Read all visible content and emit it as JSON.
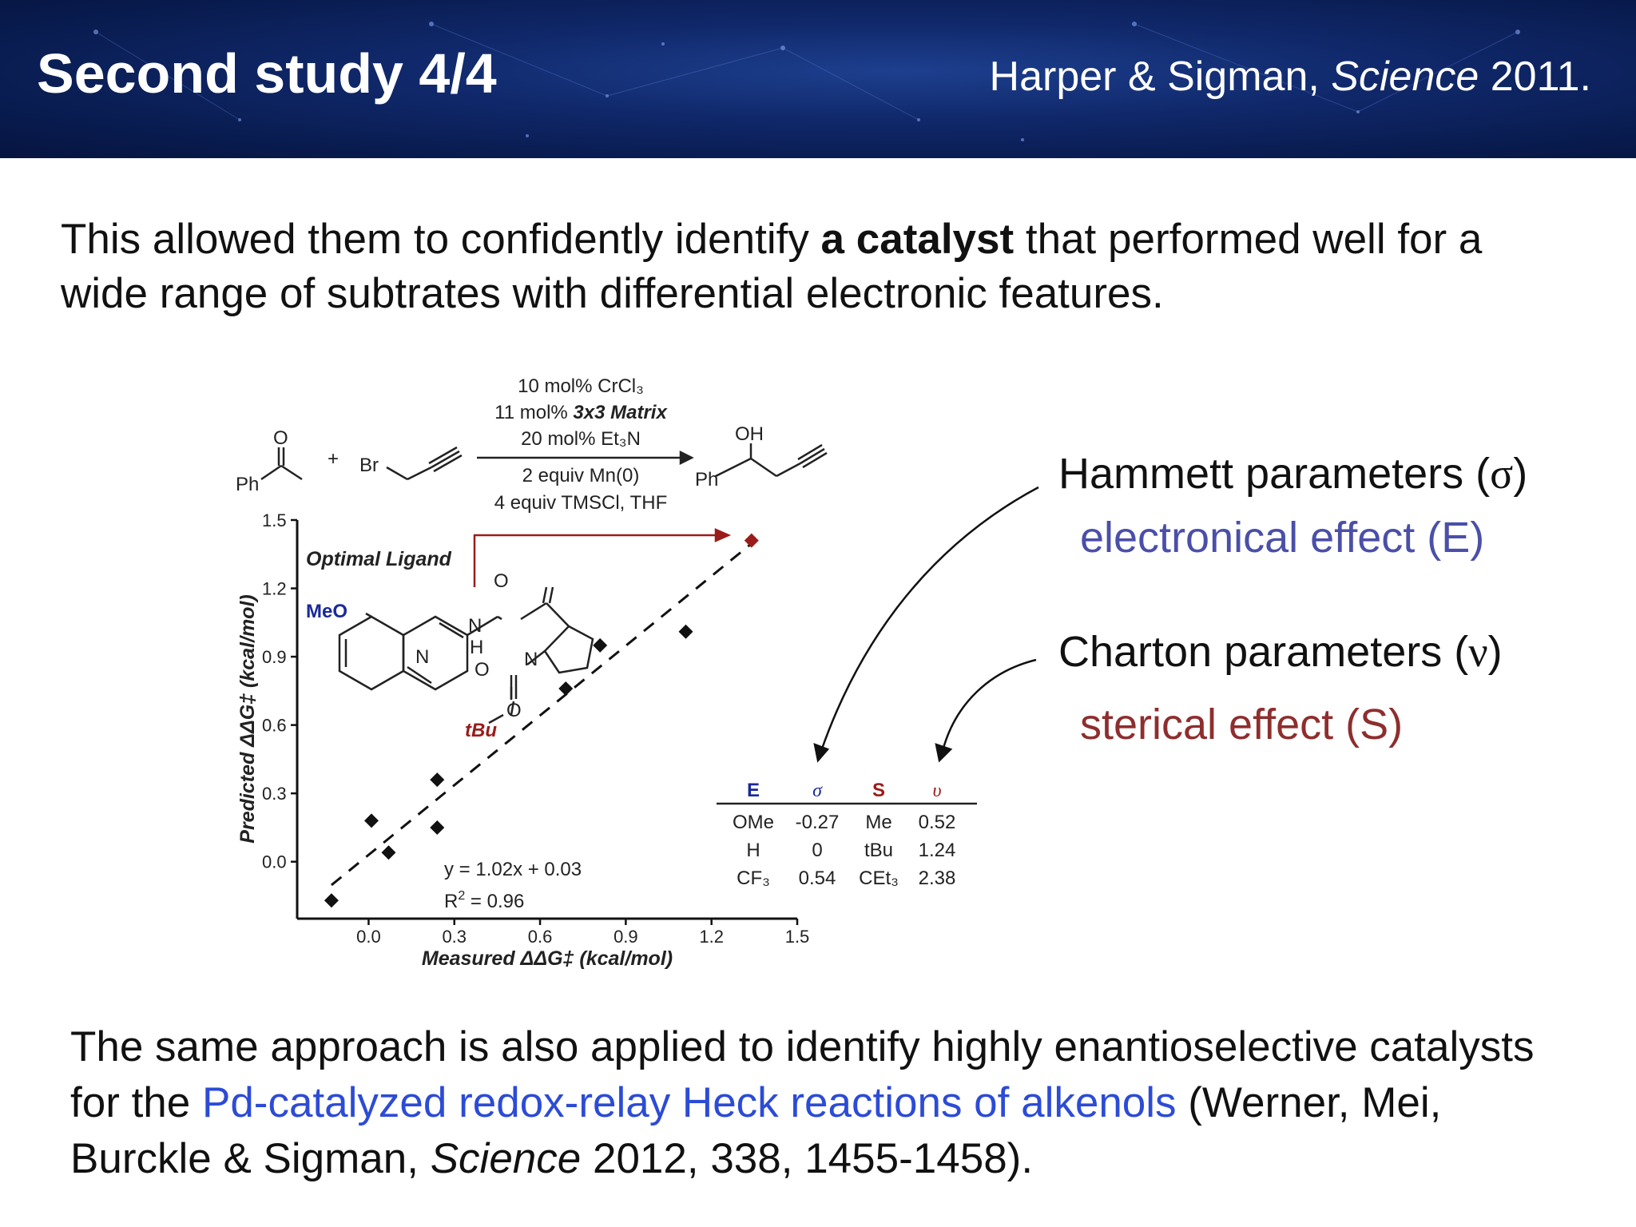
{
  "header": {
    "title": "Second study 4/4",
    "citation_authors": "Harper & Sigman, ",
    "citation_journal": "Science",
    "citation_year": " 2011."
  },
  "intro": {
    "part1": "This allowed them to confidently identify ",
    "bold": "a catalyst",
    "part2": " that performed well for a wide range of subtrates with differential electronic features."
  },
  "reaction": {
    "reactant_ph": "Ph",
    "reactant_o": "O",
    "plus": "+",
    "bromide": "Br",
    "conditions_top": [
      "10 mol% CrCl₃",
      "11 mol% ",
      "20 mol% Et₃N"
    ],
    "matrix_label": "3x3 Matrix",
    "conditions_bottom": [
      "2 equiv Mn(0)",
      "4 equiv TMSCl, THF"
    ],
    "product_oh": "OH",
    "product_ph": "Ph"
  },
  "ligand": {
    "label": "Optimal Ligand",
    "meo": "MeO",
    "n_quin": "N",
    "nh": "N",
    "h": "H",
    "o_amide": "O",
    "n_pro": "N",
    "o_carb": "O",
    "o_ester": "O",
    "tbu": "tBu"
  },
  "chart_data": {
    "type": "scatter",
    "title": "",
    "xlabel": "Measured ΔΔG‡ (kcal/mol)",
    "ylabel": "Predicted ΔΔG‡ (kcal/mol)",
    "xlim": [
      -0.25,
      1.5
    ],
    "ylim": [
      -0.25,
      1.5
    ],
    "x_ticks": [
      "0.0",
      "0.3",
      "0.6",
      "0.9",
      "1.2",
      "1.5"
    ],
    "y_ticks": [
      "0.0",
      "0.3",
      "0.6",
      "0.9",
      "1.2",
      "1.5"
    ],
    "series": [
      {
        "points": [
          {
            "x": -0.13,
            "y": -0.17
          },
          {
            "x": 0.01,
            "y": 0.18
          },
          {
            "x": 0.07,
            "y": 0.04
          },
          {
            "x": 0.24,
            "y": 0.36
          },
          {
            "x": 0.24,
            "y": 0.15
          },
          {
            "x": 0.69,
            "y": 0.76
          },
          {
            "x": 0.81,
            "y": 0.95
          },
          {
            "x": 1.11,
            "y": 1.01
          },
          {
            "x": 1.34,
            "y": 1.41,
            "highlight": true
          }
        ]
      }
    ],
    "fit": {
      "slope": 1.02,
      "intercept": 0.03,
      "x_range": [
        -0.13,
        1.35
      ]
    },
    "equation": "y = 1.02x + 0.03",
    "r2_label": "R",
    "r2_sup": "2",
    "r2_value": " = 0.96",
    "marker_color": "#111111",
    "highlight_color": "#9b1b1b"
  },
  "param_table": {
    "headers": [
      "E",
      "σ",
      "S",
      "υ"
    ],
    "header_colors": [
      "#1a2a9a",
      "#1a2a9a",
      "#9b1b1b",
      "#9b1b1b"
    ],
    "rows": [
      [
        "OMe",
        "-0.27",
        "Me",
        "0.52"
      ],
      [
        "H",
        "0",
        "tBu",
        "1.24"
      ],
      [
        "CF₃",
        "0.54",
        "CEt₃",
        "2.38"
      ]
    ]
  },
  "annotations": {
    "hammett": "Hammett parameters (",
    "hammett_sym": "σ",
    "close": ")",
    "electronic": "electronical effect (E)",
    "charton": "Charton parameters (",
    "charton_sym": "ν",
    "steric": "sterical effect (S)"
  },
  "outro": {
    "part1": "The same approach is also applied to identify highly enantioselective catalysts for the ",
    "link": "Pd-catalyzed redox-relay Heck reactions of alkenols",
    "part2": " (Werner, Mei, Burckle & Sigman, ",
    "journal": "Science",
    "part3": " 2012, 338, 1455-1458)."
  }
}
